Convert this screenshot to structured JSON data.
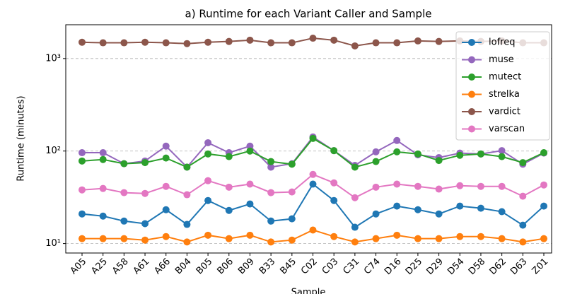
{
  "chart_data": {
    "type": "line",
    "title": "a) Runtime for each Variant Caller and Sample",
    "x_label": "Sample",
    "y_label": "Runtime (minutes)",
    "log_scale": true,
    "grid": true,
    "legend": "upper right",
    "categories": [
      "A05",
      "A25",
      "A58",
      "A61",
      "A66",
      "B04",
      "B05",
      "B06",
      "B09",
      "B33",
      "B45",
      "C02",
      "C03",
      "C31",
      "C74",
      "D16",
      "D25",
      "D29",
      "D54",
      "D58",
      "D62",
      "D63",
      "Z01"
    ],
    "ylim": [
      7.9,
      2320
    ],
    "yticks": [
      {
        "value": 10,
        "label": "10¹"
      },
      {
        "value": 100,
        "label": "10²"
      },
      {
        "value": 1000,
        "label": "10³"
      }
    ],
    "series": [
      {
        "name": "lofreq",
        "color": "#1f77b4",
        "values": [
          20.9,
          19.8,
          17.5,
          16.4,
          23.2,
          16.1,
          29.2,
          22.8,
          26.8,
          17.5,
          18.5,
          43.9,
          29.2,
          15.0,
          20.9,
          25.4,
          23.2,
          20.9,
          25.4,
          24.1,
          22.1,
          15.8,
          25.4
        ]
      },
      {
        "name": "muse",
        "color": "#9467bd",
        "values": [
          96,
          96,
          73,
          78,
          113,
          67,
          123,
          96,
          113,
          67,
          73,
          142,
          101,
          70,
          98,
          130,
          91,
          85,
          95,
          93,
          101,
          72,
          95
        ]
      },
      {
        "name": "mutect",
        "color": "#2ca02c",
        "values": [
          78,
          81,
          73,
          75,
          84,
          67,
          93,
          87,
          100,
          77,
          72,
          137,
          101,
          67,
          77,
          98,
          93,
          79,
          90,
          93,
          87,
          75,
          96
        ]
      },
      {
        "name": "strelka",
        "color": "#ff7f0e",
        "values": [
          11.3,
          11.3,
          11.3,
          10.9,
          11.9,
          10.4,
          12.3,
          11.3,
          12.3,
          10.4,
          10.9,
          14.0,
          11.9,
          10.4,
          11.3,
          12.3,
          11.3,
          11.3,
          11.9,
          11.9,
          11.3,
          10.4,
          11.3
        ]
      },
      {
        "name": "vardict",
        "color": "#8c564b",
        "values": [
          1500,
          1480,
          1480,
          1500,
          1480,
          1450,
          1500,
          1530,
          1580,
          1480,
          1480,
          1660,
          1580,
          1370,
          1480,
          1480,
          1550,
          1530,
          1550,
          1530,
          1550,
          1480,
          1480
        ]
      },
      {
        "name": "varscan",
        "color": "#e377c2",
        "values": [
          38,
          39.4,
          35.5,
          34.8,
          41.5,
          33.7,
          47.8,
          40.7,
          43.9,
          35.5,
          36.1,
          55.9,
          45.3,
          31.3,
          40.7,
          43.9,
          41.5,
          38.8,
          42.2,
          41.5,
          41.5,
          32.5,
          43
        ]
      }
    ]
  }
}
